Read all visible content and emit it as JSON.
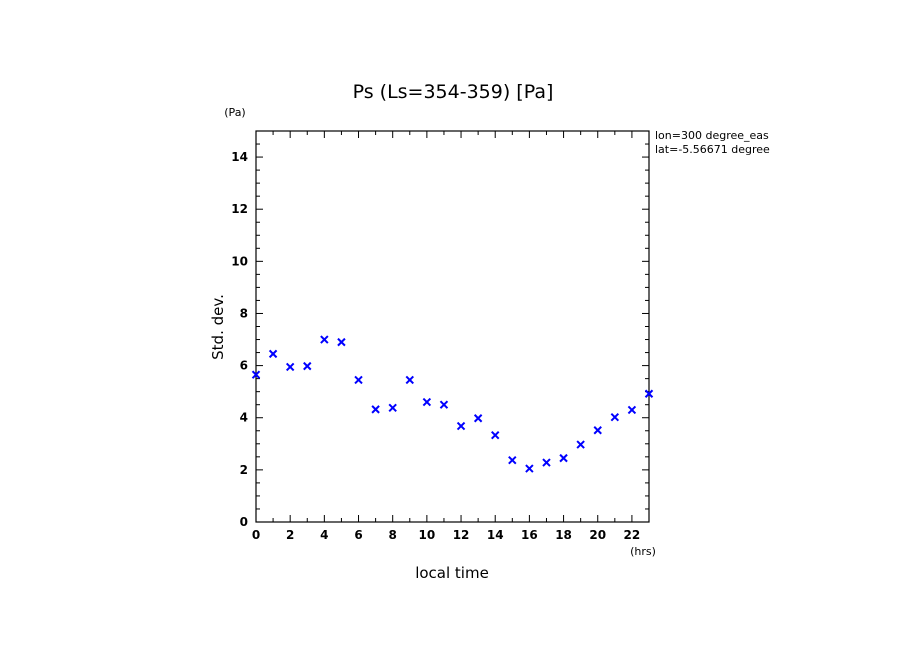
{
  "chart_data": {
    "type": "scatter",
    "title": "Ps (Ls=354-359) [Pa]",
    "xlabel": "local time",
    "ylabel": "Std. dev.",
    "x_unit": "(hrs)",
    "y_unit": "(Pa)",
    "xlim": [
      0,
      23
    ],
    "ylim": [
      0,
      15
    ],
    "x_ticks": [
      0,
      2,
      4,
      6,
      8,
      10,
      12,
      14,
      16,
      18,
      20,
      22
    ],
    "y_ticks": [
      0,
      2,
      4,
      6,
      8,
      10,
      12,
      14
    ],
    "marker": "x",
    "marker_color": "#0000ff",
    "grid": false,
    "annotations": [
      "lon=300 degree_eas",
      "lat=-5.56671 degree"
    ],
    "series": [
      {
        "x": [
          0,
          1,
          2,
          3,
          4,
          5,
          6,
          7,
          8,
          9,
          10,
          11,
          12,
          13,
          14,
          15,
          16,
          17,
          18,
          19,
          20,
          21,
          22,
          23
        ],
        "y": [
          5.65,
          6.45,
          5.95,
          5.98,
          7.0,
          6.9,
          5.45,
          4.32,
          4.38,
          5.45,
          4.6,
          4.5,
          3.68,
          3.98,
          3.33,
          2.37,
          2.05,
          2.28,
          2.45,
          2.97,
          3.52,
          4.02,
          4.3,
          4.92
        ]
      }
    ]
  }
}
